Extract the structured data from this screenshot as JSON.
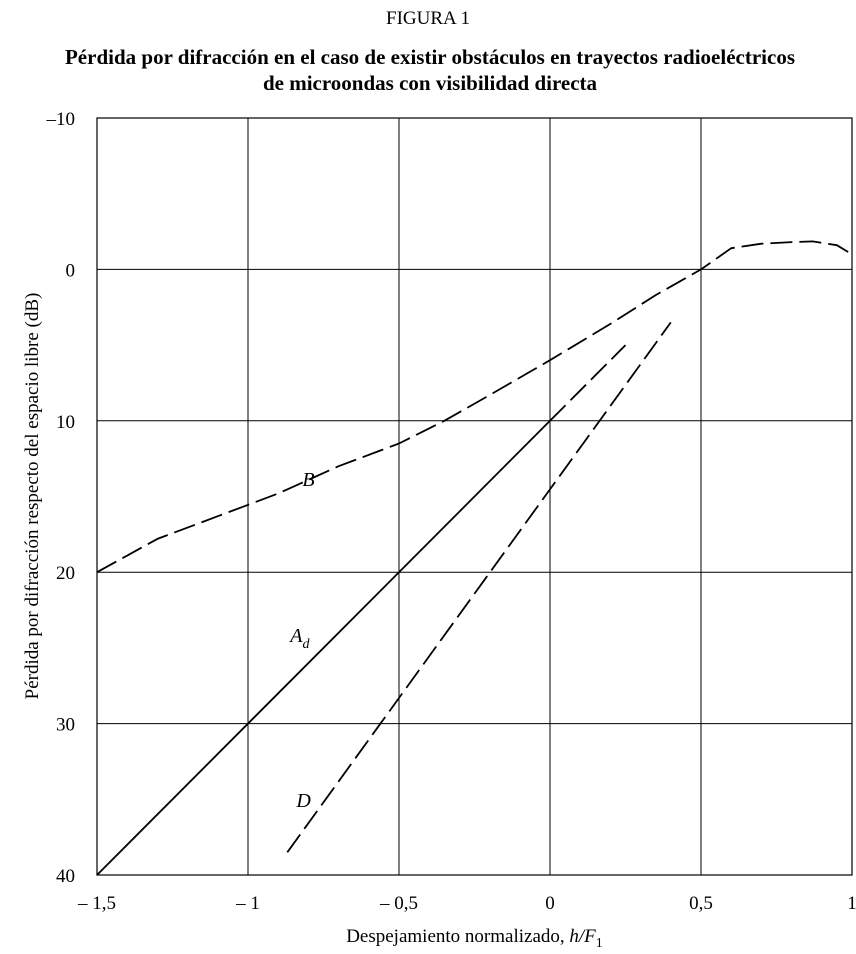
{
  "figure_label": "FIGURA 1",
  "chart_data": {
    "type": "line",
    "title": "Pérdida por difracción en el caso de existir obstáculos en trayectos radioeléctricos de microondas con visibilidad directa",
    "xlabel_text": "Despejamiento normalizado, ",
    "xlabel_var": "h/F",
    "xlabel_sub": "1",
    "ylabel": "Pérdida por difracción respecto del espacio libre (dB)",
    "xlim": [
      -1.5,
      1
    ],
    "ylim": [
      40,
      -10
    ],
    "y_inverted": true,
    "grid": true,
    "x_ticks": [
      -1.5,
      -1,
      -0.5,
      0,
      0.5,
      1
    ],
    "x_tick_labels": [
      "– 1,5",
      "– 1",
      "– 0,5",
      "0",
      "0,5",
      "1"
    ],
    "y_ticks": [
      -10,
      0,
      10,
      20,
      30,
      40
    ],
    "y_tick_labels": [
      "–10",
      "0",
      "10",
      "20",
      "30",
      "40"
    ],
    "series": [
      {
        "name": "B",
        "label_main": "B",
        "label_sub": "",
        "style": "dashed",
        "label_at": [
          -0.82,
          14.3
        ],
        "x": [
          -1.5,
          -1.3,
          -1.1,
          -0.9,
          -0.7,
          -0.5,
          -0.35,
          -0.2,
          0,
          0.2,
          0.35,
          0.5,
          0.6,
          0.7,
          0.8,
          0.87,
          0.95,
          1
        ],
        "y": [
          20,
          17.8,
          16.3,
          14.8,
          13.0,
          11.5,
          10.0,
          8.3,
          6.0,
          3.6,
          1.7,
          0,
          -1.4,
          -1.7,
          -1.8,
          -1.85,
          -1.6,
          -1.0
        ]
      },
      {
        "name": "A_d",
        "label_main": "A",
        "label_sub": "d",
        "style": "solid",
        "label_at": [
          -0.86,
          24.6
        ],
        "x": [
          -1.5,
          0
        ],
        "y": [
          40,
          10
        ]
      },
      {
        "name": "A_d_dashed",
        "style": "dashed",
        "x": [
          0,
          0.25
        ],
        "y": [
          10,
          5
        ]
      },
      {
        "name": "D",
        "label_main": "D",
        "label_sub": "",
        "style": "dashed",
        "label_at": [
          -0.84,
          35.5
        ],
        "x": [
          -0.87,
          0.4
        ],
        "y": [
          38.5,
          3.5
        ]
      }
    ]
  }
}
